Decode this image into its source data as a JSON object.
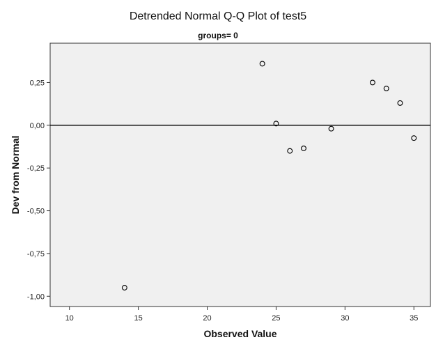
{
  "chart_data": {
    "type": "scatter",
    "title": "Detrended Normal Q-Q Plot of test5",
    "subtitle": "groups= 0",
    "xlabel": "Observed Value",
    "ylabel": "Dev from Normal",
    "xlim": [
      8.6,
      36.2
    ],
    "ylim": [
      -1.06,
      0.48
    ],
    "x_ticks": [
      10,
      15,
      20,
      25,
      30,
      35
    ],
    "x_tick_labels": [
      "10",
      "15",
      "20",
      "25",
      "30",
      "35"
    ],
    "y_ticks": [
      0.25,
      0.0,
      -0.25,
      -0.5,
      -0.75,
      -1.0
    ],
    "y_tick_labels": [
      "0,25",
      "0,00",
      "-0,25",
      "-0,50",
      "-0,75",
      "-1,00"
    ],
    "reference_line_y": 0,
    "grid": false,
    "colors": {
      "plot_background": "#f0f0f0",
      "marker_stroke": "#000000",
      "reference_line": "#000000"
    },
    "points": [
      {
        "x": 14,
        "y": -0.95
      },
      {
        "x": 24,
        "y": 0.36
      },
      {
        "x": 25,
        "y": 0.01
      },
      {
        "x": 26,
        "y": -0.15
      },
      {
        "x": 27,
        "y": -0.135
      },
      {
        "x": 29,
        "y": -0.02
      },
      {
        "x": 32,
        "y": 0.25
      },
      {
        "x": 33,
        "y": 0.215
      },
      {
        "x": 34,
        "y": 0.13
      },
      {
        "x": 35,
        "y": -0.075
      }
    ]
  }
}
